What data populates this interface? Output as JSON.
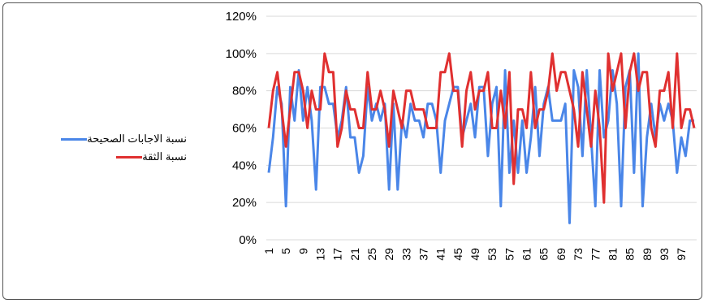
{
  "chart_data": {
    "type": "line",
    "x": [
      1,
      2,
      3,
      4,
      5,
      6,
      7,
      8,
      9,
      10,
      11,
      12,
      13,
      14,
      15,
      16,
      17,
      18,
      19,
      20,
      21,
      22,
      23,
      24,
      25,
      26,
      27,
      28,
      29,
      30,
      31,
      32,
      33,
      34,
      35,
      36,
      37,
      38,
      39,
      40,
      41,
      42,
      43,
      44,
      45,
      46,
      47,
      48,
      49,
      50,
      51,
      52,
      53,
      54,
      55,
      56,
      57,
      58,
      59,
      60,
      61,
      62,
      63,
      64,
      65,
      66,
      67,
      68,
      69,
      70,
      71,
      72,
      73,
      74,
      75,
      76,
      77,
      78,
      79,
      80,
      81,
      82,
      83,
      84,
      85,
      86,
      87,
      88,
      89,
      90,
      91,
      92,
      93,
      94,
      95,
      96,
      97,
      98,
      99,
      100
    ],
    "x_tick_labels": [
      "1",
      "5",
      "9",
      "13",
      "17",
      "21",
      "25",
      "29",
      "33",
      "37",
      "41",
      "45",
      "49",
      "53",
      "57",
      "61",
      "65",
      "69",
      "73",
      "77",
      "81",
      "85",
      "89",
      "93",
      "97"
    ],
    "y_tick_labels": [
      "0%",
      "20%",
      "40%",
      "60%",
      "80%",
      "100%",
      "120%"
    ],
    "ylim": [
      0,
      1.2
    ],
    "series": [
      {
        "name": "نسبة الاجابات الصحيحة",
        "color": "#4a86e8",
        "values": [
          0.36,
          0.55,
          0.82,
          0.73,
          0.18,
          0.82,
          0.64,
          0.91,
          0.64,
          0.82,
          0.64,
          0.27,
          0.82,
          0.82,
          0.73,
          0.73,
          0.55,
          0.64,
          0.82,
          0.55,
          0.55,
          0.36,
          0.45,
          0.82,
          0.64,
          0.73,
          0.64,
          0.73,
          0.27,
          0.73,
          0.27,
          0.64,
          0.55,
          0.73,
          0.64,
          0.64,
          0.55,
          0.73,
          0.73,
          0.64,
          0.36,
          0.64,
          0.73,
          0.82,
          0.82,
          0.55,
          0.64,
          0.73,
          0.55,
          0.82,
          0.82,
          0.45,
          0.73,
          0.82,
          0.18,
          0.91,
          0.36,
          0.64,
          0.36,
          0.64,
          0.36,
          0.55,
          0.82,
          0.45,
          0.73,
          0.82,
          0.64,
          0.64,
          0.64,
          0.73,
          0.09,
          0.91,
          0.82,
          0.45,
          0.91,
          0.55,
          0.18,
          0.91,
          0.55,
          0.64,
          0.91,
          0.73,
          0.18,
          0.82,
          0.91,
          0.36,
          1.0,
          0.18,
          0.55,
          0.73,
          0.55,
          0.73,
          0.64,
          0.73,
          0.64,
          0.36,
          0.55,
          0.45,
          0.64,
          0.64
        ]
      },
      {
        "name": "نسبة الثقة",
        "color": "#e03030",
        "values": [
          0.6,
          0.8,
          0.9,
          0.7,
          0.5,
          0.7,
          0.9,
          0.9,
          0.8,
          0.6,
          0.8,
          0.7,
          0.7,
          1.0,
          0.9,
          0.9,
          0.5,
          0.6,
          0.8,
          0.7,
          0.7,
          0.6,
          0.6,
          0.9,
          0.7,
          0.7,
          0.8,
          0.7,
          0.5,
          0.8,
          0.7,
          0.6,
          0.8,
          0.8,
          0.7,
          0.7,
          0.7,
          0.6,
          0.6,
          0.6,
          0.9,
          0.9,
          1.0,
          0.8,
          0.8,
          0.5,
          0.8,
          0.9,
          0.7,
          0.8,
          0.8,
          0.9,
          0.6,
          0.6,
          0.8,
          0.6,
          0.9,
          0.3,
          0.7,
          0.7,
          0.6,
          0.9,
          0.6,
          0.7,
          0.7,
          0.8,
          1.0,
          0.8,
          0.9,
          0.9,
          0.8,
          0.7,
          0.5,
          0.9,
          0.7,
          0.5,
          0.8,
          0.6,
          0.2,
          1.0,
          0.8,
          0.9,
          1.0,
          0.6,
          0.9,
          1.0,
          0.8,
          0.9,
          0.9,
          0.6,
          0.5,
          0.8,
          0.8,
          0.9,
          0.6,
          1.0,
          0.6,
          0.7,
          0.7,
          0.6
        ]
      }
    ],
    "grid": true,
    "legend_position": "left"
  }
}
